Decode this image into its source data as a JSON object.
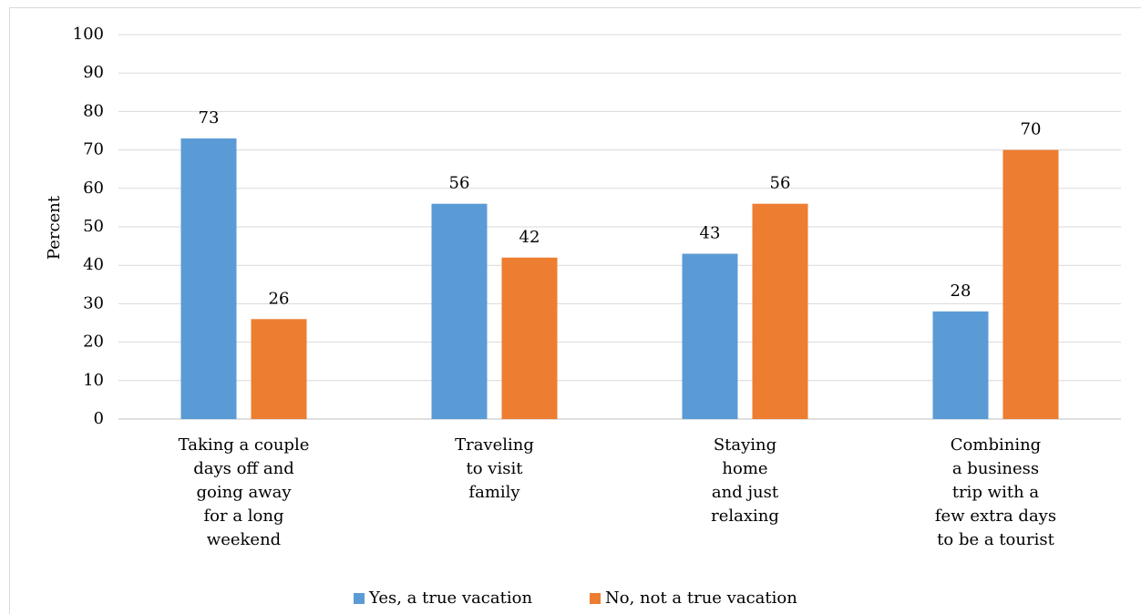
{
  "chart_data": {
    "type": "bar",
    "y_label": "Percent",
    "categories": [
      "Taking a couple\ndays off and\ngoing away\nfor a long\nweekend",
      "Traveling\nto visit\nfamily",
      "Staying\nhome\nand just\nrelaxing",
      "Combining\na business\ntrip with a\nfew extra days\nto be a tourist"
    ],
    "series": [
      {
        "name": "Yes, a true vacation",
        "color": "#5b9bd5",
        "values": [
          73,
          56,
          43,
          28
        ]
      },
      {
        "name": "No, not a true vacation",
        "color": "#ed7d31",
        "values": [
          26,
          42,
          56,
          70
        ]
      }
    ],
    "ylim": [
      0,
      100
    ],
    "yticks": [
      0,
      10,
      20,
      30,
      40,
      50,
      60,
      70,
      80,
      90,
      100
    ],
    "grid": true,
    "legend": "bottom"
  }
}
